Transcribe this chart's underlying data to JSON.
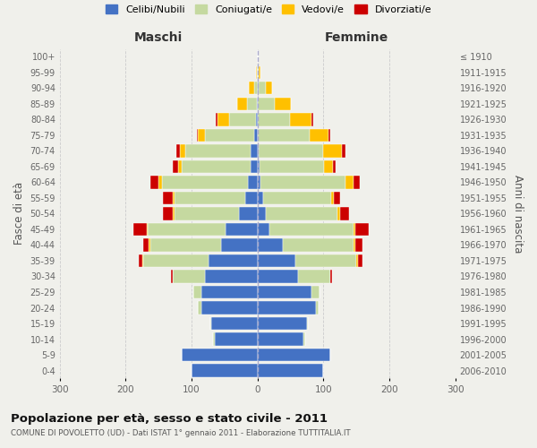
{
  "age_groups_bottom_to_top": [
    "0-4",
    "5-9",
    "10-14",
    "15-19",
    "20-24",
    "25-29",
    "30-34",
    "35-39",
    "40-44",
    "45-49",
    "50-54",
    "55-59",
    "60-64",
    "65-69",
    "70-74",
    "75-79",
    "80-84",
    "85-89",
    "90-94",
    "95-99",
    "100+"
  ],
  "birth_years_bottom_to_top": [
    "2006-2010",
    "2001-2005",
    "1996-2000",
    "1991-1995",
    "1986-1990",
    "1981-1985",
    "1976-1980",
    "1971-1975",
    "1966-1970",
    "1961-1965",
    "1956-1960",
    "1951-1955",
    "1946-1950",
    "1941-1945",
    "1936-1940",
    "1931-1935",
    "1926-1930",
    "1921-1925",
    "1916-1920",
    "1911-1915",
    "≤ 1910"
  ],
  "colors": {
    "celibe": "#4472C4",
    "coniugato": "#c5d9a0",
    "vedovo": "#ffc000",
    "divorziato": "#cc0000"
  },
  "m_celibe": [
    100,
    115,
    65,
    70,
    85,
    85,
    80,
    75,
    55,
    48,
    28,
    18,
    15,
    10,
    10,
    5,
    3,
    1,
    0,
    0,
    0
  ],
  "m_coniugato": [
    0,
    0,
    2,
    2,
    5,
    12,
    48,
    98,
    108,
    118,
    98,
    108,
    130,
    105,
    100,
    75,
    40,
    15,
    5,
    1,
    0
  ],
  "m_vedovo": [
    0,
    0,
    0,
    0,
    0,
    0,
    1,
    2,
    2,
    2,
    3,
    3,
    5,
    5,
    8,
    10,
    18,
    15,
    8,
    2,
    0
  ],
  "m_divorziato": [
    0,
    0,
    0,
    0,
    0,
    0,
    3,
    5,
    8,
    20,
    14,
    14,
    12,
    8,
    5,
    2,
    2,
    0,
    0,
    0,
    0
  ],
  "f_nubile": [
    100,
    110,
    70,
    75,
    88,
    82,
    62,
    58,
    38,
    18,
    13,
    8,
    5,
    3,
    2,
    1,
    1,
    1,
    2,
    0,
    0
  ],
  "f_coniugata": [
    0,
    0,
    2,
    2,
    5,
    12,
    48,
    92,
    108,
    128,
    108,
    103,
    128,
    98,
    98,
    78,
    48,
    25,
    10,
    2,
    0
  ],
  "f_vedova": [
    0,
    0,
    0,
    0,
    0,
    0,
    0,
    2,
    3,
    3,
    4,
    5,
    12,
    14,
    28,
    28,
    33,
    25,
    10,
    3,
    1
  ],
  "f_divorziata": [
    0,
    0,
    0,
    0,
    0,
    0,
    3,
    7,
    10,
    20,
    14,
    9,
    10,
    3,
    5,
    3,
    2,
    0,
    0,
    0,
    0
  ],
  "title": "Popolazione per età, sesso e stato civile - 2011",
  "subtitle": "COMUNE DI POVOLETTO (UD) - Dati ISTAT 1° gennaio 2011 - Elaborazione TUTTITALIA.IT",
  "xlabel_left": "Maschi",
  "xlabel_right": "Femmine",
  "ylabel_left": "Fasce di età",
  "ylabel_right": "Anni di nascita",
  "legend_labels": [
    "Celibi/Nubili",
    "Coniugati/e",
    "Vedovi/e",
    "Divorziati/e"
  ],
  "bg_color": "#f0f0eb",
  "grid_color": "#cccccc"
}
